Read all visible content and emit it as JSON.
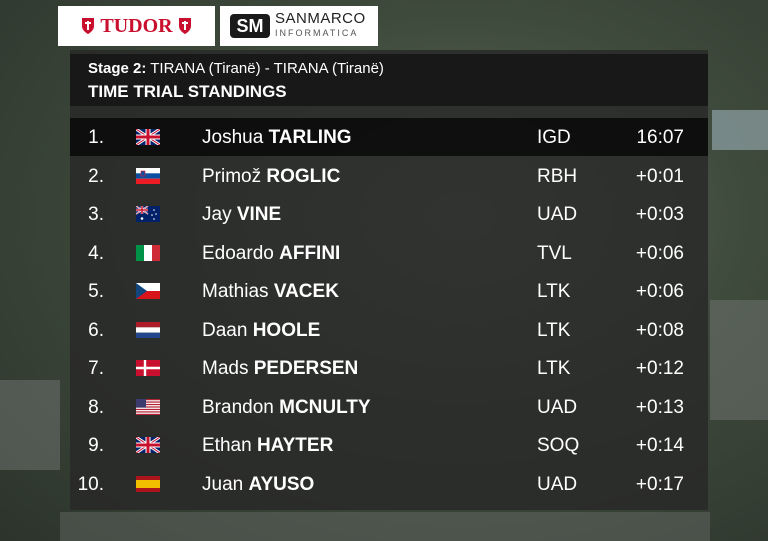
{
  "sponsors": {
    "left": "TUDOR",
    "right_main": "SANMARCO",
    "right_sub": "INFORMATICA"
  },
  "header": {
    "stage_label": "Stage 2:",
    "stage_route": "TIRANA (Tiranë) - TIRANA (Tiranë)",
    "title": "TIME TRIAL STANDINGS"
  },
  "standings": [
    {
      "rank": "1.",
      "first_name": "Joshua",
      "last_name": "TARLING",
      "team": "IGD",
      "time": "16:07"
    },
    {
      "rank": "2.",
      "first_name": "Primož",
      "last_name": "ROGLIC",
      "team": "RBH",
      "time": "+0:01"
    },
    {
      "rank": "3.",
      "first_name": "Jay",
      "last_name": "VINE",
      "team": "UAD",
      "time": "+0:03"
    },
    {
      "rank": "4.",
      "first_name": "Edoardo",
      "last_name": "AFFINI",
      "team": "TVL",
      "time": "+0:06"
    },
    {
      "rank": "5.",
      "first_name": "Mathias",
      "last_name": "VACEK",
      "team": "LTK",
      "time": "+0:06"
    },
    {
      "rank": "6.",
      "first_name": "Daan",
      "last_name": "HOOLE",
      "team": "LTK",
      "time": "+0:08"
    },
    {
      "rank": "7.",
      "first_name": "Mads",
      "last_name": "PEDERSEN",
      "team": "LTK",
      "time": "+0:12"
    },
    {
      "rank": "8.",
      "first_name": "Brandon",
      "last_name": "MCNULTY",
      "team": "UAD",
      "time": "+0:13"
    },
    {
      "rank": "9.",
      "first_name": "Ethan",
      "last_name": "HAYTER",
      "team": "SOQ",
      "time": "+0:14"
    },
    {
      "rank": "10.",
      "first_name": "Juan",
      "last_name": "AYUSO",
      "team": "UAD",
      "time": "+0:17"
    }
  ]
}
